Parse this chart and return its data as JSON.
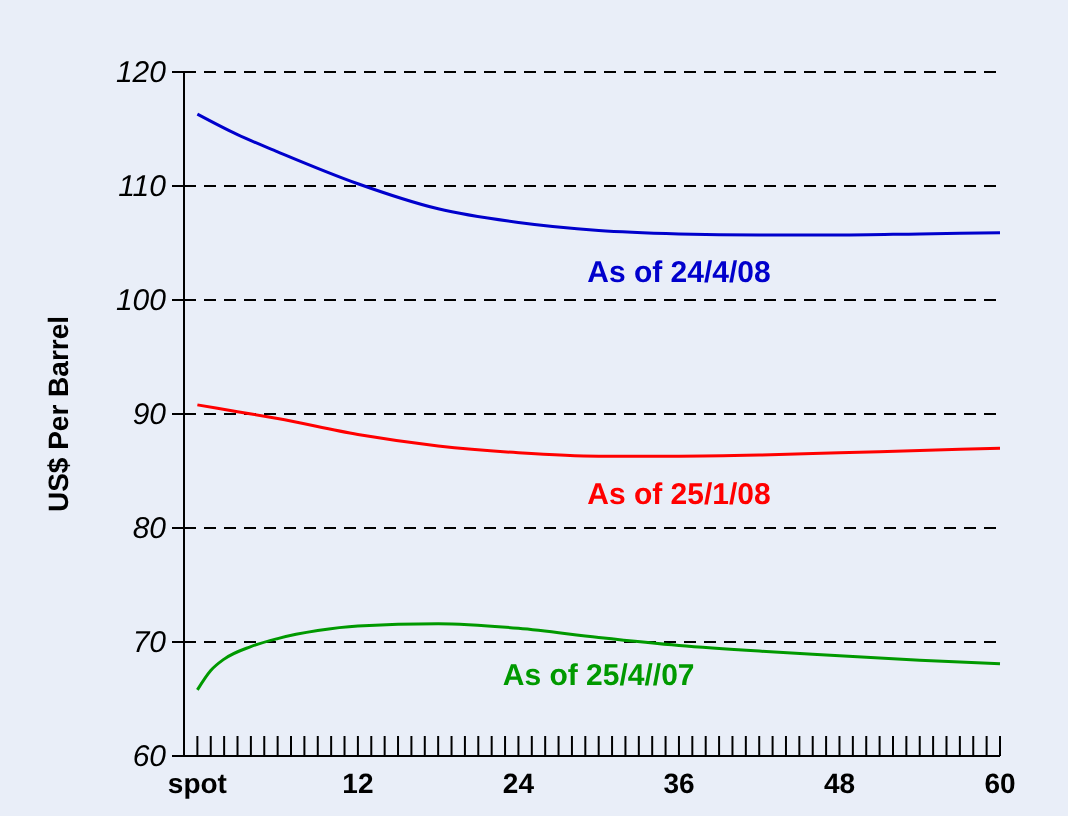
{
  "chart_data": {
    "type": "line",
    "ylabel": "US$ Per Barrel",
    "x": [
      0,
      3,
      6,
      12,
      18,
      24,
      30,
      36,
      42,
      48,
      54,
      60
    ],
    "xlim": [
      -1,
      60
    ],
    "xticks": [
      {
        "value": 0,
        "label": "spot"
      },
      {
        "value": 1,
        "label": null
      },
      {
        "value": 2,
        "label": null
      },
      {
        "value": 3,
        "label": null
      },
      {
        "value": 4,
        "label": null
      },
      {
        "value": 5,
        "label": null
      },
      {
        "value": 6,
        "label": null
      },
      {
        "value": 7,
        "label": null
      },
      {
        "value": 8,
        "label": null
      },
      {
        "value": 9,
        "label": null
      },
      {
        "value": 10,
        "label": null
      },
      {
        "value": 11,
        "label": null
      },
      12,
      {
        "value": 13,
        "label": null
      },
      {
        "value": 14,
        "label": null
      },
      {
        "value": 15,
        "label": null
      },
      {
        "value": 16,
        "label": null
      },
      {
        "value": 17,
        "label": null
      },
      {
        "value": 18,
        "label": null
      },
      {
        "value": 19,
        "label": null
      },
      {
        "value": 20,
        "label": null
      },
      {
        "value": 21,
        "label": null
      },
      {
        "value": 22,
        "label": null
      },
      {
        "value": 23,
        "label": null
      },
      24,
      {
        "value": 25,
        "label": null
      },
      {
        "value": 26,
        "label": null
      },
      {
        "value": 27,
        "label": null
      },
      {
        "value": 28,
        "label": null
      },
      {
        "value": 29,
        "label": null
      },
      {
        "value": 30,
        "label": null
      },
      {
        "value": 31,
        "label": null
      },
      {
        "value": 32,
        "label": null
      },
      {
        "value": 33,
        "label": null
      },
      {
        "value": 34,
        "label": null
      },
      {
        "value": 35,
        "label": null
      },
      36,
      {
        "value": 37,
        "label": null
      },
      {
        "value": 38,
        "label": null
      },
      {
        "value": 39,
        "label": null
      },
      {
        "value": 40,
        "label": null
      },
      {
        "value": 41,
        "label": null
      },
      {
        "value": 42,
        "label": null
      },
      {
        "value": 43,
        "label": null
      },
      {
        "value": 44,
        "label": null
      },
      {
        "value": 45,
        "label": null
      },
      {
        "value": 46,
        "label": null
      },
      {
        "value": 47,
        "label": null
      },
      48,
      {
        "value": 49,
        "label": null
      },
      {
        "value": 50,
        "label": null
      },
      {
        "value": 51,
        "label": null
      },
      {
        "value": 52,
        "label": null
      },
      {
        "value": 53,
        "label": null
      },
      {
        "value": 54,
        "label": null
      },
      {
        "value": 55,
        "label": null
      },
      {
        "value": 56,
        "label": null
      },
      {
        "value": 57,
        "label": null
      },
      {
        "value": 58,
        "label": null
      },
      {
        "value": 59,
        "label": null
      },
      60
    ],
    "ylim": [
      60,
      120
    ],
    "yticks": [
      60,
      70,
      80,
      90,
      100,
      110,
      120
    ],
    "grid": "y",
    "line_style": "solid",
    "marker": "none",
    "series": [
      {
        "name": "As of 24/4/08",
        "color": "#0000cc",
        "values": [
          116.3,
          114.5,
          113,
          110.2,
          108,
          106.8,
          106.1,
          105.8,
          105.7,
          105.7,
          105.8,
          105.9
        ]
      },
      {
        "name": "As of 25/1/08",
        "color": "#ff0000",
        "values": [
          90.8,
          90.2,
          89.6,
          88.2,
          87.2,
          86.6,
          86.3,
          86.3,
          86.4,
          86.6,
          86.8,
          87.0
        ]
      },
      {
        "name": "As of 25/4//07",
        "color": "#009900",
        "x": [
          0,
          1,
          2,
          4,
          6,
          9,
          12,
          18,
          24,
          30,
          36,
          42,
          48,
          54,
          60
        ],
        "values": [
          65.8,
          67.5,
          68.5,
          69.6,
          70.3,
          71,
          71.4,
          71.6,
          71.2,
          70.4,
          69.7,
          69.2,
          68.8,
          68.4,
          68.1
        ]
      }
    ]
  }
}
